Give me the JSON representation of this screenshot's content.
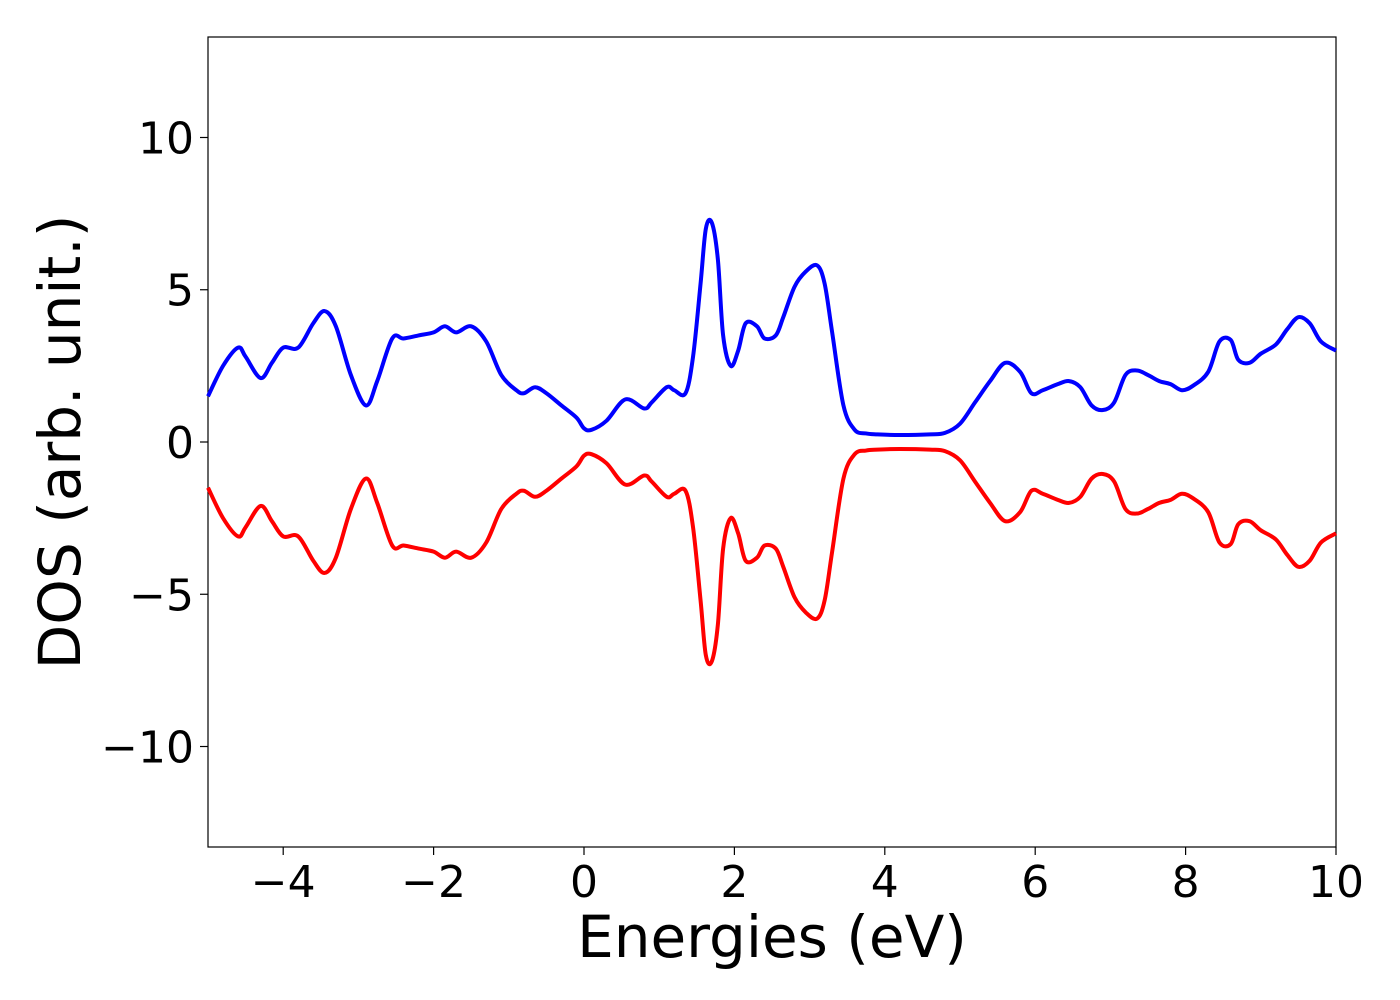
{
  "chart_data": {
    "type": "line",
    "title": "",
    "xlabel": "Energies (eV)",
    "ylabel": "DOS (arb. unit.)",
    "xlim": [
      -5,
      10
    ],
    "ylim": [
      -13.3,
      13.3
    ],
    "xticks": [
      -4,
      -2,
      0,
      2,
      4,
      6,
      8,
      10
    ],
    "xtick_labels": [
      "−4",
      "−2",
      "0",
      "2",
      "4",
      "6",
      "8",
      "10"
    ],
    "yticks": [
      10,
      5,
      0,
      -5,
      -10
    ],
    "ytick_labels": [
      "10",
      "5",
      "0",
      "−5",
      "−10"
    ],
    "grid": false,
    "legend": "none",
    "series": [
      {
        "color": "#0000ff",
        "x": [
          -5.0,
          -4.8,
          -4.6,
          -4.5,
          -4.3,
          -4.15,
          -4.0,
          -3.8,
          -3.6,
          -3.45,
          -3.3,
          -3.1,
          -2.9,
          -2.75,
          -2.55,
          -2.4,
          -2.2,
          -2.0,
          -1.85,
          -1.7,
          -1.5,
          -1.3,
          -1.1,
          -0.9,
          -0.8,
          -0.65,
          -0.5,
          -0.3,
          -0.1,
          0.0,
          0.1,
          0.3,
          0.55,
          0.8,
          0.9,
          1.1,
          1.2,
          1.35,
          1.45,
          1.55,
          1.62,
          1.7,
          1.78,
          1.85,
          1.95,
          2.05,
          2.15,
          2.3,
          2.4,
          2.55,
          2.65,
          2.8,
          2.95,
          3.1,
          3.2,
          3.3,
          3.45,
          3.6,
          3.75,
          3.9,
          4.2,
          4.6,
          4.8,
          5.0,
          5.2,
          5.4,
          5.6,
          5.8,
          5.95,
          6.1,
          6.3,
          6.45,
          6.6,
          6.75,
          6.9,
          7.05,
          7.2,
          7.35,
          7.5,
          7.65,
          7.8,
          7.95,
          8.1,
          8.3,
          8.45,
          8.6,
          8.7,
          8.85,
          9.0,
          9.2,
          9.35,
          9.5,
          9.65,
          9.8,
          10.0
        ],
        "values": [
          1.5,
          2.5,
          3.1,
          2.8,
          2.1,
          2.6,
          3.1,
          3.1,
          3.9,
          4.3,
          3.8,
          2.2,
          1.2,
          2.0,
          3.4,
          3.4,
          3.5,
          3.6,
          3.8,
          3.6,
          3.8,
          3.3,
          2.2,
          1.7,
          1.6,
          1.8,
          1.6,
          1.2,
          0.8,
          0.45,
          0.4,
          0.7,
          1.4,
          1.1,
          1.3,
          1.8,
          1.7,
          1.6,
          2.8,
          5.2,
          7.0,
          7.2,
          6.0,
          3.5,
          2.5,
          3.0,
          3.9,
          3.8,
          3.4,
          3.5,
          4.1,
          5.1,
          5.6,
          5.8,
          5.2,
          3.6,
          1.2,
          0.4,
          0.28,
          0.25,
          0.23,
          0.25,
          0.3,
          0.6,
          1.3,
          2.0,
          2.6,
          2.3,
          1.6,
          1.7,
          1.9,
          2.0,
          1.8,
          1.2,
          1.05,
          1.3,
          2.2,
          2.35,
          2.2,
          2.0,
          1.9,
          1.7,
          1.85,
          2.3,
          3.3,
          3.35,
          2.7,
          2.6,
          2.9,
          3.2,
          3.7,
          4.1,
          3.9,
          3.3,
          3.0
        ]
      },
      {
        "color": "#ff0000",
        "x": [
          -5.0,
          -4.8,
          -4.6,
          -4.5,
          -4.3,
          -4.15,
          -4.0,
          -3.8,
          -3.6,
          -3.45,
          -3.3,
          -3.1,
          -2.9,
          -2.75,
          -2.55,
          -2.4,
          -2.2,
          -2.0,
          -1.85,
          -1.7,
          -1.5,
          -1.3,
          -1.1,
          -0.9,
          -0.8,
          -0.65,
          -0.5,
          -0.3,
          -0.1,
          0.0,
          0.1,
          0.3,
          0.55,
          0.8,
          0.9,
          1.1,
          1.2,
          1.35,
          1.45,
          1.55,
          1.62,
          1.7,
          1.78,
          1.85,
          1.95,
          2.05,
          2.15,
          2.3,
          2.4,
          2.55,
          2.65,
          2.8,
          2.95,
          3.1,
          3.2,
          3.3,
          3.45,
          3.6,
          3.75,
          3.9,
          4.2,
          4.6,
          4.8,
          5.0,
          5.2,
          5.4,
          5.6,
          5.8,
          5.95,
          6.1,
          6.3,
          6.45,
          6.6,
          6.75,
          6.9,
          7.05,
          7.2,
          7.35,
          7.5,
          7.65,
          7.8,
          7.95,
          8.1,
          8.3,
          8.45,
          8.6,
          8.7,
          8.85,
          9.0,
          9.2,
          9.35,
          9.5,
          9.65,
          9.8,
          10.0
        ],
        "values": [
          -1.5,
          -2.5,
          -3.1,
          -2.8,
          -2.1,
          -2.6,
          -3.1,
          -3.1,
          -3.9,
          -4.3,
          -3.8,
          -2.2,
          -1.2,
          -2.0,
          -3.4,
          -3.4,
          -3.5,
          -3.6,
          -3.8,
          -3.6,
          -3.8,
          -3.3,
          -2.2,
          -1.7,
          -1.6,
          -1.8,
          -1.6,
          -1.2,
          -0.8,
          -0.45,
          -0.4,
          -0.7,
          -1.4,
          -1.1,
          -1.3,
          -1.8,
          -1.7,
          -1.6,
          -2.8,
          -5.2,
          -7.0,
          -7.2,
          -6.0,
          -3.5,
          -2.5,
          -3.0,
          -3.9,
          -3.8,
          -3.4,
          -3.5,
          -4.1,
          -5.1,
          -5.6,
          -5.8,
          -5.2,
          -3.6,
          -1.2,
          -0.4,
          -0.28,
          -0.25,
          -0.23,
          -0.25,
          -0.3,
          -0.6,
          -1.3,
          -2.0,
          -2.6,
          -2.3,
          -1.6,
          -1.7,
          -1.9,
          -2.0,
          -1.8,
          -1.2,
          -1.05,
          -1.3,
          -2.2,
          -2.35,
          -2.2,
          -2.0,
          -1.9,
          -1.7,
          -1.85,
          -2.3,
          -3.3,
          -3.35,
          -2.7,
          -2.6,
          -2.9,
          -3.2,
          -3.7,
          -4.1,
          -3.9,
          -3.3,
          -3.0
        ]
      }
    ]
  }
}
